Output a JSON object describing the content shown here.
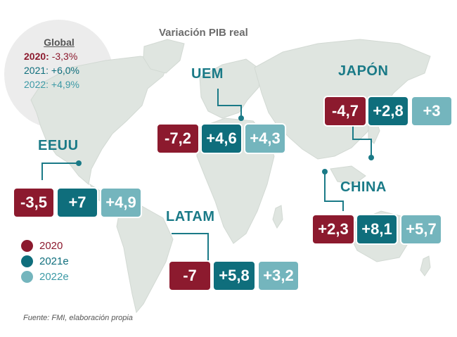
{
  "title": "Variación PIB real",
  "global": {
    "title": "Global",
    "y2020_year": "2020:",
    "y2020_value": " -3,3%",
    "y2021": "2021: +6,0%",
    "y2022": "2022: +4,9%"
  },
  "colors": {
    "y2020": "#8c1a2e",
    "y2021": "#0f6e7c",
    "y2022": "#74b5bd",
    "map": "#dfe5e0",
    "region_label": "#1a7a87"
  },
  "regions": {
    "eeuu": {
      "name": "EEUU",
      "v2020": "-3,5",
      "v2021": "+7",
      "v2022": "+4,9"
    },
    "uem": {
      "name": "UEM",
      "v2020": "-7,2",
      "v2021": "+4,6",
      "v2022": "+4,3"
    },
    "japon": {
      "name": "JAPÓN",
      "v2020": "-4,7",
      "v2021": "+2,8",
      "v2022": "+3"
    },
    "china": {
      "name": "CHINA",
      "v2020": "+2,3",
      "v2021": "+8,1",
      "v2022": "+5,7"
    },
    "latam": {
      "name": "LATAM",
      "v2020": "-7",
      "v2021": "+5,8",
      "v2022": "+3,2"
    }
  },
  "legend": [
    {
      "label": "2020",
      "color": "#8c1a2e"
    },
    {
      "label": "2021e",
      "color": "#0f6e7c"
    },
    {
      "label": "2022e",
      "color": "#74b5bd"
    }
  ],
  "source": "Fuente: FMI, elaboración propia"
}
